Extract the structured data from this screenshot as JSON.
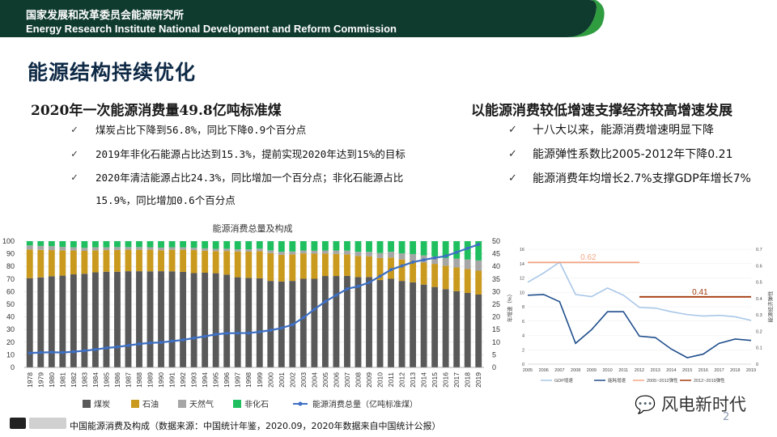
{
  "header": {
    "org_cn": "国家发展和改革委员会能源研究所",
    "org_en": "Energy Research Institute National Development and Reform Commission",
    "colors": {
      "banner": "#0f3a2e",
      "accent": "#2e9c3f"
    }
  },
  "slide": {
    "title": "能源结构持续优化",
    "page_number": "2",
    "caption": "中国能源消费及构成（数据来源：中国统计年鉴，2020.09，2020年数据来自中国统计公报）",
    "watermark": "风电新时代"
  },
  "left": {
    "heading": "2020年一次能源消费量49.8亿吨标准煤",
    "bullets": [
      {
        "check": "✓",
        "text": "煤炭占比下降到56.8%，同比下降0.9个百分点"
      },
      {
        "check": "✓",
        "text": "2019年非化石能源占比达到15.3%，提前实现2020年达到15%的目标"
      },
      {
        "check": "✓",
        "text": "2020年清洁能源占比24.3%，同比增加一个百分点；非化石能源占比",
        "cont": "15.9%，同比增加0.6个百分点"
      }
    ]
  },
  "right": {
    "heading": "以能源消费较低增速支撑经济较高增速发展",
    "bullets": [
      {
        "check": "✓",
        "text": "十八大以来，能源消费增速明显下降"
      },
      {
        "check": "✓",
        "text": "能源弹性系数比2005-2012年下降0.21"
      },
      {
        "check": "✓",
        "text": "能源消费年均增长2.7%支撑GDP年增长7%"
      }
    ]
  },
  "chart_data": [
    {
      "type": "bar",
      "title": "能源消费总量及构成",
      "categories": [
        "1978",
        "1979",
        "1980",
        "1981",
        "1982",
        "1983",
        "1984",
        "1985",
        "1986",
        "1987",
        "1988",
        "1989",
        "1990",
        "1991",
        "1992",
        "1993",
        "1994",
        "1995",
        "1996",
        "1997",
        "1998",
        "1999",
        "2000",
        "2001",
        "2002",
        "2003",
        "2004",
        "2005",
        "2006",
        "2007",
        "2008",
        "2009",
        "2010",
        "2011",
        "2012",
        "2013",
        "2014",
        "2015",
        "2016",
        "2017",
        "2018",
        "2019"
      ],
      "ylim_left": [
        0,
        100
      ],
      "ylim_right": [
        0,
        50
      ],
      "yticks_left": [
        "0",
        "10",
        "20",
        "30",
        "40",
        "50",
        "60",
        "70",
        "80",
        "90",
        "100"
      ],
      "yticks_right": [
        "0",
        "5",
        "10",
        "15",
        "20",
        "25",
        "30",
        "35",
        "40",
        "45",
        "50"
      ],
      "series": [
        {
          "name": "煤炭",
          "color": "#595959",
          "values": [
            70.7,
            71.3,
            72.2,
            72.7,
            73.7,
            74.2,
            75.3,
            75.8,
            75.8,
            76.2,
            76.2,
            76.1,
            76.2,
            76.1,
            75.7,
            74.7,
            75.0,
            74.6,
            73.5,
            71.4,
            70.9,
            70.6,
            68.5,
            68.0,
            68.5,
            70.2,
            70.2,
            72.4,
            72.4,
            72.5,
            71.5,
            71.6,
            69.2,
            70.2,
            68.5,
            67.4,
            65.6,
            63.7,
            62.0,
            60.4,
            59.0,
            57.7
          ]
        },
        {
          "name": "石油",
          "color": "#c99a1e",
          "values": [
            22.7,
            21.8,
            20.7,
            20.0,
            18.9,
            18.1,
            17.4,
            17.1,
            17.2,
            17.0,
            17.0,
            17.1,
            16.6,
            17.1,
            17.5,
            18.2,
            17.4,
            17.5,
            18.7,
            20.4,
            20.8,
            21.5,
            22.0,
            21.2,
            21.0,
            20.1,
            19.9,
            17.8,
            17.5,
            17.0,
            16.7,
            16.4,
            17.4,
            16.8,
            17.0,
            17.1,
            17.4,
            18.3,
            18.5,
            18.8,
            18.9,
            18.9
          ]
        },
        {
          "name": "天然气",
          "color": "#a6a6a6",
          "values": [
            3.2,
            3.1,
            3.1,
            2.8,
            2.5,
            2.4,
            2.4,
            2.2,
            2.3,
            2.1,
            2.1,
            2.0,
            2.1,
            2.0,
            1.9,
            1.9,
            1.9,
            1.8,
            1.8,
            1.8,
            1.8,
            2.0,
            2.2,
            2.4,
            2.3,
            2.3,
            2.3,
            2.4,
            2.7,
            3.0,
            3.4,
            3.5,
            4.0,
            4.6,
            4.8,
            5.3,
            5.7,
            5.9,
            6.1,
            7.0,
            7.6,
            8.1
          ]
        },
        {
          "name": "非化石",
          "color": "#1fbf5f",
          "values": [
            3.4,
            3.8,
            4.0,
            4.5,
            4.9,
            5.3,
            4.9,
            4.9,
            4.7,
            4.7,
            4.7,
            4.8,
            5.1,
            4.8,
            4.9,
            5.2,
            5.7,
            6.1,
            6.0,
            6.4,
            6.5,
            5.9,
            7.3,
            8.4,
            8.2,
            7.4,
            7.6,
            7.4,
            7.4,
            7.5,
            8.4,
            8.5,
            9.4,
            8.4,
            9.7,
            10.2,
            11.3,
            12.1,
            13.4,
            13.8,
            14.5,
            15.3
          ]
        },
        {
          "name": "能源消费总量（亿吨标准煤）",
          "color": "#3d6fc4",
          "axis": "right",
          "values": [
            5.7,
            5.9,
            6.0,
            5.9,
            6.2,
            6.6,
            7.1,
            7.7,
            8.1,
            8.7,
            9.3,
            9.7,
            9.9,
            10.4,
            10.9,
            11.6,
            12.3,
            13.1,
            13.5,
            13.6,
            13.6,
            14.1,
            14.7,
            15.6,
            16.9,
            19.7,
            23.0,
            26.1,
            28.6,
            31.1,
            32.1,
            33.6,
            36.1,
            38.7,
            40.2,
            41.7,
            42.6,
            43.4,
            44.1,
            45.6,
            47.2,
            48.7
          ]
        }
      ],
      "legend": [
        "煤炭",
        "石油",
        "天然气",
        "非化石",
        "能源消费总量（亿吨标准煤）"
      ]
    },
    {
      "type": "line",
      "x": [
        "2005",
        "2006",
        "2007",
        "2008",
        "2009",
        "2010",
        "2011",
        "2012",
        "2013",
        "2014",
        "2015",
        "2016",
        "2017",
        "2018",
        "2019"
      ],
      "ylim_left": [
        0,
        16
      ],
      "ylim_right": [
        0,
        0.7
      ],
      "yticks_left": [
        "0",
        "2",
        "4",
        "6",
        "8",
        "10",
        "12",
        "14",
        "16"
      ],
      "yticks_right": [
        "0",
        "0.1",
        "0.2",
        "0.3",
        "0.4",
        "0.5",
        "0.6",
        "0.7"
      ],
      "ylabel_left": "年增速（%）",
      "ylabel_right": "能源经济弹性",
      "series": [
        {
          "name": "GDP增速",
          "color": "#a9c7e8",
          "values": [
            11.4,
            12.7,
            14.2,
            9.7,
            9.4,
            10.6,
            9.6,
            7.9,
            7.8,
            7.3,
            6.9,
            6.7,
            6.8,
            6.6,
            6.1
          ]
        },
        {
          "name": "能耗增速",
          "color": "#1f4e8c",
          "values": [
            9.6,
            9.7,
            8.7,
            2.9,
            4.8,
            7.3,
            7.3,
            3.9,
            3.7,
            2.1,
            0.9,
            1.4,
            2.9,
            3.5,
            3.3
          ]
        },
        {
          "name": "2005~2012弹性",
          "color": "#f4a582",
          "values": [
            0.62,
            0.62,
            0.62,
            0.62,
            0.62,
            0.62,
            0.62,
            0.62
          ],
          "x": [
            "2005",
            "2006",
            "2007",
            "2008",
            "2009",
            "2010",
            "2011",
            "2012"
          ],
          "label": "0.62"
        },
        {
          "name": "2012~2019弹性",
          "color": "#a33a10",
          "values": [
            0.41,
            0.41,
            0.41,
            0.41,
            0.41,
            0.41,
            0.41,
            0.41
          ],
          "x": [
            "2012",
            "2013",
            "2014",
            "2015",
            "2016",
            "2017",
            "2018",
            "2019"
          ],
          "label": "0.41"
        }
      ],
      "legend": [
        "GDP增速",
        "能耗增速",
        "2005~2012弹性",
        "2012~2019弹性"
      ]
    }
  ]
}
